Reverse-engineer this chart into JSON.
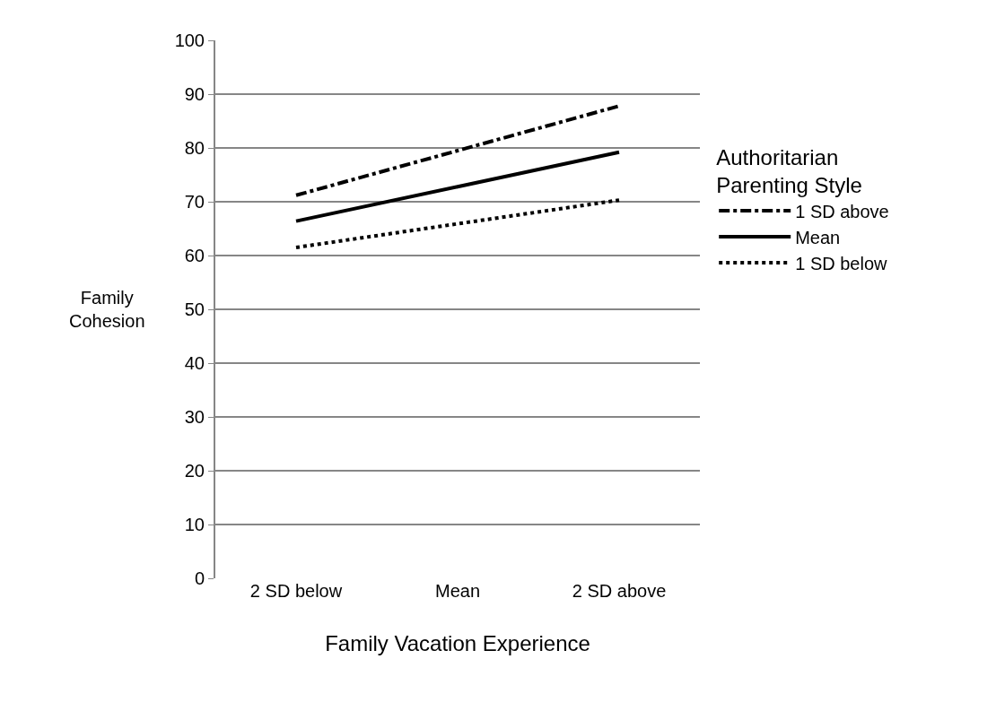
{
  "chart_data": {
    "type": "line",
    "xlabel": "Family Vacation Experience",
    "ylabel": "Family Cohesion",
    "legend_title": "Authoritarian Parenting Style",
    "categories": [
      "2 SD below",
      "Mean",
      "2 SD above"
    ],
    "series": [
      {
        "name": "1 SD above",
        "color": "#000000",
        "line_style": "dashdot",
        "values": [
          71.2,
          79.5,
          87.8
        ]
      },
      {
        "name": "Mean",
        "color": "#000000",
        "line_style": "solid",
        "values": [
          66.4,
          72.8,
          79.2
        ]
      },
      {
        "name": "1 SD below",
        "color": "#000000",
        "line_style": "dotted",
        "values": [
          61.5,
          65.9,
          70.3
        ]
      }
    ],
    "ylim": [
      0,
      100
    ],
    "yticks": [
      0,
      10,
      20,
      30,
      40,
      50,
      60,
      70,
      80,
      90,
      100
    ],
    "grid": "y",
    "legend": "right",
    "marker": "none"
  }
}
